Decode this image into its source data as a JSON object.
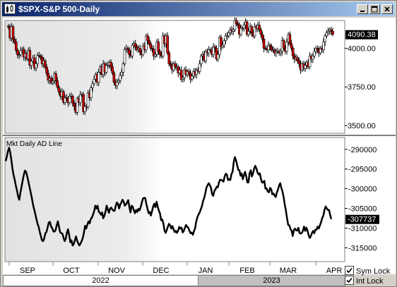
{
  "window": {
    "title": "$SPX-S&P 500-Daily",
    "buttons": [
      "minimize",
      "maximize",
      "close"
    ]
  },
  "footer": {
    "years": [
      "2022",
      "2023"
    ],
    "sym_lock": {
      "label": "Sym Lock",
      "checked": true
    },
    "int_lock": {
      "label": "Int Lock",
      "checked": true
    }
  },
  "colors": {
    "up_candle": "#ffffff",
    "down_candle": "#cc0000",
    "ad_line": "#000000",
    "price_tag_bg": "#000000",
    "price_tag_text": "#ffffff"
  },
  "chart_data": [
    {
      "type": "candlestick",
      "title": "",
      "y_labels": [
        "4000.00",
        "3750.00",
        "3500.00"
      ],
      "last_value_label": "4090.38",
      "x_labels": [
        "SEP",
        "OCT",
        "NOV",
        "DEC",
        "JAN",
        "FEB",
        "MAR",
        "APR"
      ],
      "ylim": [
        3450,
        4180
      ],
      "closes": [
        4136,
        4066,
        4140,
        4057,
        4040,
        3986,
        3957,
        3958,
        3985,
        3994,
        3943,
        3967,
        3932,
        3986,
        3889,
        3916,
        3937,
        3873,
        3901,
        3953,
        3950,
        3942,
        3899,
        3919,
        3878,
        3838,
        3793,
        3806,
        3779,
        3789,
        3835,
        3790,
        3748,
        3717,
        3690,
        3719,
        3650,
        3680,
        3677,
        3648,
        3690,
        3690,
        3645,
        3625,
        3585,
        3675,
        3650,
        3700,
        3701,
        3590,
        3624,
        3620,
        3710,
        3680,
        3745,
        3770,
        3800,
        3830,
        3780,
        3845,
        3880,
        3830,
        3900,
        3845,
        3890,
        3890,
        3910,
        3880,
        3840,
        3780,
        3760,
        3780,
        3790,
        3825,
        3845,
        3900,
        3990,
        4000,
        3990,
        3960,
        3950,
        4020,
        4030,
        4010,
        3990,
        4000,
        3975,
        3960,
        4015,
        3990,
        4080,
        4050,
        4030,
        4000,
        3995,
        3950,
        3960,
        4040,
        3980,
        3960,
        3950,
        4080,
        4030,
        4080,
        3970,
        3900,
        3890,
        3860,
        3900,
        3880,
        3880,
        3840,
        3860,
        3800,
        3810,
        3860,
        3830,
        3850,
        3840,
        3800,
        3820,
        3850,
        3830,
        3860,
        3850,
        3900,
        3950,
        3960,
        3920,
        3980,
        3970,
        3990,
        3990,
        3960,
        4010,
        4000,
        3930,
        3960,
        4070,
        4010,
        4020,
        4050,
        4080,
        4080,
        4100,
        4120,
        4110,
        4120,
        4180,
        4160,
        4150,
        4090,
        4130,
        4130,
        4150,
        4170,
        4090,
        4110,
        4140,
        4100,
        4080,
        4140,
        4130,
        4150,
        4120,
        4090,
        4060,
        4000,
        4000,
        3990,
        4020,
        4010,
        3990,
        3990,
        3970,
        3980,
        3980,
        3970,
        3980,
        4050,
        4000,
        3980,
        4040,
        4090,
        4030,
        4000,
        3950,
        3930,
        3940,
        3920,
        3900,
        3860,
        3900,
        3870,
        3890,
        3910,
        3880,
        3950,
        3930,
        3950,
        3980,
        4000,
        3990,
        3970,
        4000,
        3990,
        4040,
        4080,
        4100,
        4110,
        4120,
        4110,
        4090
      ]
    },
    {
      "type": "line",
      "title": "Mkt Daily AD Line",
      "y_labels": [
        "-290000",
        "-295000",
        "-300000",
        "-305000",
        "-310000",
        "-315000"
      ],
      "last_value_label": "-307737",
      "ylim": [
        -318500,
        -287000
      ],
      "values": [
        -293000,
        -291900,
        -290500,
        -289600,
        -290700,
        -292600,
        -294900,
        -296500,
        -297800,
        -299300,
        -300500,
        -302000,
        -302800,
        -301000,
        -299500,
        -297900,
        -296500,
        -295400,
        -295700,
        -296800,
        -298100,
        -299500,
        -300800,
        -302200,
        -303900,
        -305100,
        -306300,
        -307600,
        -308800,
        -309600,
        -310900,
        -312000,
        -313100,
        -313300,
        -312600,
        -311300,
        -311000,
        -309800,
        -308600,
        -308400,
        -309600,
        -310000,
        -310800,
        -310900,
        -310500,
        -309300,
        -308300,
        -309600,
        -311000,
        -311300,
        -311400,
        -312400,
        -313300,
        -312700,
        -311100,
        -310300,
        -311800,
        -313600,
        -313100,
        -314400,
        -314000,
        -313100,
        -312100,
        -313200,
        -313900,
        -314400,
        -313900,
        -313300,
        -312500,
        -311200,
        -309400,
        -310100,
        -309100,
        -308300,
        -308800,
        -307700,
        -307300,
        -306600,
        -305700,
        -304300,
        -305000,
        -304300,
        -305800,
        -306100,
        -306600,
        -306000,
        -307500,
        -306900,
        -305800,
        -304300,
        -305300,
        -306100,
        -305000,
        -304800,
        -305300,
        -305600,
        -305600,
        -304400,
        -303500,
        -303800,
        -305000,
        -304000,
        -303500,
        -302800,
        -303300,
        -304300,
        -304000,
        -303500,
        -302900,
        -304600,
        -306000,
        -304300,
        -304600,
        -305500,
        -306200,
        -305400,
        -305900,
        -305100,
        -305500,
        -304700,
        -303500,
        -302500,
        -302300,
        -302400,
        -303900,
        -305100,
        -306200,
        -305900,
        -306800,
        -305700,
        -304500,
        -303800,
        -304700,
        -303300,
        -304500,
        -305500,
        -306300,
        -308000,
        -307800,
        -308800,
        -310600,
        -311200,
        -310500,
        -309600,
        -308900,
        -309300,
        -310100,
        -309500,
        -310300,
        -311000,
        -310700,
        -311200,
        -310600,
        -309700,
        -310100,
        -309900,
        -311100,
        -310700,
        -309900,
        -309200,
        -309700,
        -309900,
        -310700,
        -311300,
        -311100,
        -311700,
        -310800,
        -310000,
        -308200,
        -307200,
        -306500,
        -306000,
        -305200,
        -304400,
        -303100,
        -302300,
        -301100,
        -299700,
        -299100,
        -298600,
        -299100,
        -299800,
        -301400,
        -301800,
        -300500,
        -300100,
        -299500,
        -299600,
        -298400,
        -297700,
        -297800,
        -297900,
        -298200,
        -296900,
        -296200,
        -296400,
        -297800,
        -297600,
        -297800,
        -296300,
        -295700,
        -293200,
        -292000,
        -292800,
        -294000,
        -295200,
        -295300,
        -296700,
        -296100,
        -297600,
        -296600,
        -295700,
        -296800,
        -298400,
        -298400,
        -296100,
        -295300,
        -296900,
        -296100,
        -294900,
        -294200,
        -294900,
        -295900,
        -296400,
        -296100,
        -297500,
        -298400,
        -298400,
        -298000,
        -300000,
        -299900,
        -300700,
        -300900,
        -299800,
        -300100,
        -301400,
        -301200,
        -301700,
        -302100,
        -301000,
        -300200,
        -299200,
        -298600,
        -299800,
        -300700,
        -302100,
        -304000,
        -305500,
        -307600,
        -309200,
        -309300,
        -310200,
        -310700,
        -312000,
        -310500,
        -310100,
        -310600,
        -310600,
        -309900,
        -311200,
        -311400,
        -311200,
        -310700,
        -309600,
        -310700,
        -309900,
        -310600,
        -311800,
        -312500,
        -312000,
        -311200,
        -310700,
        -311300,
        -310400,
        -310400,
        -309600,
        -310100,
        -309300,
        -308500,
        -307500,
        -306800,
        -305400,
        -304500,
        -305000,
        -305400,
        -305400,
        -306700,
        -307700
      ]
    }
  ]
}
